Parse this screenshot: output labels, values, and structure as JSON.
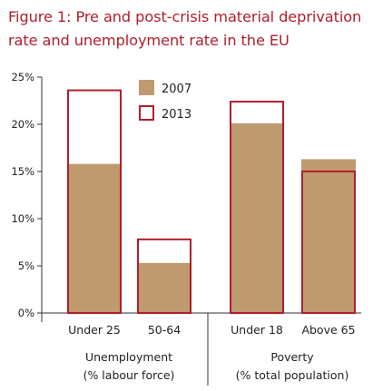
{
  "title_line1": "Figure 1: Pre and post-crisis material deprivation",
  "title_line2": "rate and unemployment rate in the EU",
  "colors": {
    "bar_2007": "#bf9a6f",
    "bar_2013_outline": "#b01e2d",
    "axis": "#333333"
  },
  "chart_data": {
    "type": "bar",
    "categories": [
      "Under 25",
      "50-64",
      "Under 18",
      "Above 65"
    ],
    "groups": [
      {
        "label_line1": "Unemployment",
        "label_line2": "(% labour force)",
        "categories": [
          "Under 25",
          "50-64"
        ]
      },
      {
        "label_line1": "Poverty",
        "label_line2": "(% total population)",
        "categories": [
          "Under 18",
          "Above 65"
        ]
      }
    ],
    "series": [
      {
        "name": "2007",
        "style": "filled",
        "values": [
          15.8,
          5.3,
          20.1,
          16.3
        ]
      },
      {
        "name": "2013",
        "style": "outline",
        "values": [
          23.6,
          7.8,
          22.4,
          15.0
        ]
      }
    ],
    "yticks": [
      "0%",
      "5%",
      "10%",
      "15%",
      "20%",
      "25%"
    ],
    "ylim": [
      0,
      25
    ],
    "legend_position": "top-center",
    "grid": false
  }
}
